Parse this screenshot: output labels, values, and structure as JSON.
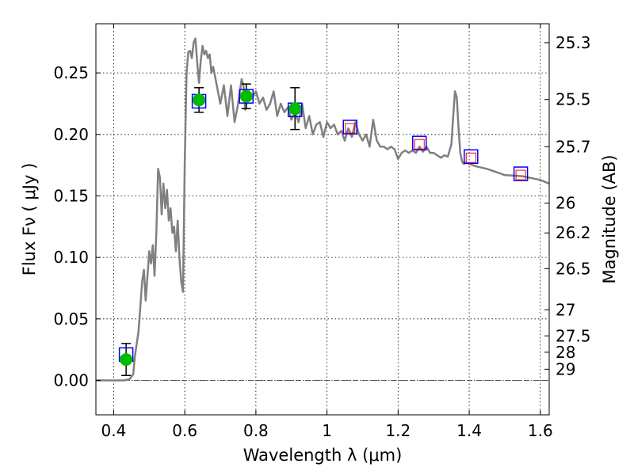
{
  "chart_data": {
    "type": "line",
    "xlabel": "Wavelength  λ (μm)",
    "ylabel": "Flux  Fν  ( μJy )",
    "y2label": "Magnitude (AB)",
    "xlim": [
      0.35,
      1.625
    ],
    "ylim": [
      -0.028,
      0.29
    ],
    "grid": true,
    "x_ticks": [
      0.4,
      0.6,
      0.8,
      1.0,
      1.2,
      1.4,
      1.6
    ],
    "x_tick_labels": [
      "0.4",
      "0.6",
      "0.8",
      "1",
      "1.2",
      "1.4",
      "1.6"
    ],
    "y_ticks": [
      0.0,
      0.05,
      0.1,
      0.15,
      0.2,
      0.25
    ],
    "y_tick_labels": [
      "0.00",
      "0.05",
      "0.10",
      "0.15",
      "0.20",
      "0.25"
    ],
    "y2_ticks": [
      {
        "label": "25.3",
        "flux": 0.2746
      },
      {
        "label": "25.5",
        "flux": 0.2284
      },
      {
        "label": "25.7",
        "flux": 0.19
      },
      {
        "label": "26",
        "flux": 0.1441
      },
      {
        "label": "26.2",
        "flux": 0.1199
      },
      {
        "label": "26.5",
        "flux": 0.0909
      },
      {
        "label": "27",
        "flux": 0.0574
      },
      {
        "label": "27.5",
        "flux": 0.0362
      },
      {
        "label": "28",
        "flux": 0.0229
      },
      {
        "label": "29",
        "flux": 0.0091
      }
    ],
    "spectrum": {
      "color": "#808080",
      "x": [
        0.35,
        0.43,
        0.445,
        0.455,
        0.46,
        0.47,
        0.475,
        0.48,
        0.485,
        0.49,
        0.495,
        0.5,
        0.505,
        0.51,
        0.515,
        0.52,
        0.525,
        0.53,
        0.535,
        0.54,
        0.545,
        0.55,
        0.555,
        0.56,
        0.565,
        0.57,
        0.575,
        0.58,
        0.585,
        0.59,
        0.595,
        0.6,
        0.605,
        0.61,
        0.615,
        0.62,
        0.625,
        0.63,
        0.635,
        0.64,
        0.645,
        0.65,
        0.655,
        0.66,
        0.665,
        0.67,
        0.675,
        0.68,
        0.69,
        0.7,
        0.71,
        0.72,
        0.73,
        0.74,
        0.75,
        0.76,
        0.765,
        0.77,
        0.78,
        0.79,
        0.8,
        0.81,
        0.82,
        0.83,
        0.84,
        0.85,
        0.86,
        0.87,
        0.88,
        0.89,
        0.9,
        0.91,
        0.92,
        0.93,
        0.94,
        0.95,
        0.96,
        0.97,
        0.98,
        0.99,
        1.0,
        1.01,
        1.02,
        1.03,
        1.04,
        1.05,
        1.06,
        1.07,
        1.08,
        1.09,
        1.1,
        1.11,
        1.12,
        1.13,
        1.14,
        1.15,
        1.16,
        1.17,
        1.18,
        1.19,
        1.2,
        1.21,
        1.22,
        1.23,
        1.24,
        1.25,
        1.26,
        1.27,
        1.28,
        1.29,
        1.3,
        1.31,
        1.32,
        1.33,
        1.34,
        1.35,
        1.355,
        1.36,
        1.365,
        1.37,
        1.375,
        1.38,
        1.385,
        1.39,
        1.4,
        1.42,
        1.45,
        1.5,
        1.55,
        1.6,
        1.625
      ],
      "y": [
        0.0,
        0.0,
        0.001,
        0.005,
        0.02,
        0.04,
        0.06,
        0.08,
        0.09,
        0.065,
        0.085,
        0.105,
        0.095,
        0.11,
        0.085,
        0.12,
        0.172,
        0.165,
        0.135,
        0.16,
        0.14,
        0.155,
        0.13,
        0.14,
        0.12,
        0.125,
        0.105,
        0.13,
        0.1,
        0.08,
        0.072,
        0.18,
        0.25,
        0.267,
        0.268,
        0.262,
        0.275,
        0.278,
        0.258,
        0.242,
        0.26,
        0.272,
        0.265,
        0.268,
        0.262,
        0.265,
        0.25,
        0.255,
        0.24,
        0.225,
        0.24,
        0.215,
        0.24,
        0.21,
        0.225,
        0.245,
        0.24,
        0.22,
        0.235,
        0.23,
        0.235,
        0.225,
        0.23,
        0.22,
        0.225,
        0.235,
        0.215,
        0.225,
        0.218,
        0.222,
        0.212,
        0.218,
        0.21,
        0.225,
        0.205,
        0.215,
        0.2,
        0.208,
        0.21,
        0.198,
        0.21,
        0.205,
        0.208,
        0.2,
        0.203,
        0.195,
        0.205,
        0.198,
        0.21,
        0.2,
        0.195,
        0.2,
        0.19,
        0.212,
        0.195,
        0.19,
        0.19,
        0.188,
        0.19,
        0.188,
        0.18,
        0.185,
        0.187,
        0.185,
        0.187,
        0.185,
        0.19,
        0.186,
        0.19,
        0.185,
        0.185,
        0.183,
        0.181,
        0.183,
        0.182,
        0.192,
        0.215,
        0.235,
        0.23,
        0.205,
        0.185,
        0.178,
        0.176,
        0.177,
        0.176,
        0.174,
        0.172,
        0.167,
        0.166,
        0.163,
        0.16
      ]
    },
    "model_points": {
      "edge_color": "#0000ff",
      "x": [
        0.435,
        0.64,
        0.773,
        0.91,
        1.065,
        1.26,
        1.405,
        1.545
      ],
      "y": [
        0.021,
        0.227,
        0.231,
        0.22,
        0.206,
        0.193,
        0.182,
        0.168
      ]
    },
    "observed_points": {
      "color": "#00bb00",
      "x": [
        0.435,
        0.64,
        0.773,
        0.91
      ],
      "y": [
        0.017,
        0.228,
        0.231,
        0.221
      ],
      "yerr": [
        0.013,
        0.01,
        0.01,
        0.017
      ]
    },
    "predicted_points": {
      "edge_color": "#ff0000",
      "x": [
        1.065,
        1.26,
        1.405,
        1.545
      ],
      "y": [
        0.205,
        0.192,
        0.181,
        0.167
      ]
    },
    "zero_line": {
      "color": "#555555",
      "y": 0.0
    }
  }
}
